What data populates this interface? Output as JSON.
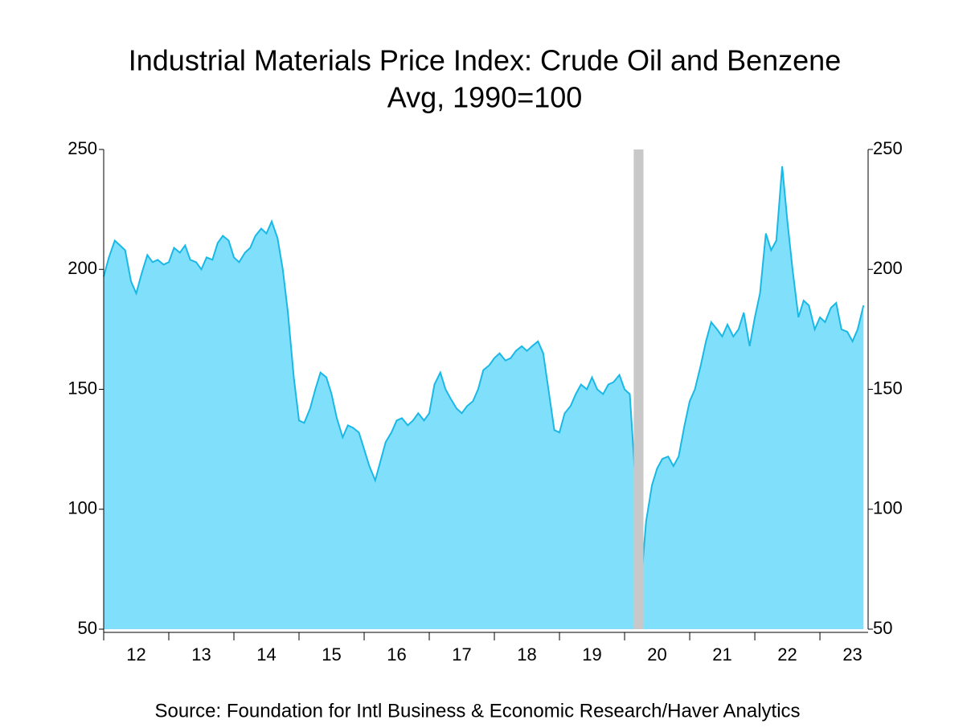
{
  "chart_data": {
    "type": "area",
    "title": "Industrial Materials Price Index: Crude Oil and Benzene",
    "subtitle": "Avg, 1990=100",
    "source": "Source:  Foundation for Intl Business & Economic Research/Haver Analytics",
    "x": [
      12,
      12.08,
      12.17,
      12.25,
      12.33,
      12.42,
      12.5,
      12.58,
      12.67,
      12.75,
      12.83,
      12.92,
      13,
      13.08,
      13.17,
      13.25,
      13.33,
      13.42,
      13.5,
      13.58,
      13.67,
      13.75,
      13.83,
      13.92,
      14,
      14.08,
      14.17,
      14.25,
      14.33,
      14.42,
      14.5,
      14.58,
      14.67,
      14.75,
      14.83,
      14.92,
      15,
      15.08,
      15.17,
      15.25,
      15.33,
      15.42,
      15.5,
      15.58,
      15.67,
      15.75,
      15.83,
      15.92,
      16,
      16.08,
      16.17,
      16.25,
      16.33,
      16.42,
      16.5,
      16.58,
      16.67,
      16.75,
      16.83,
      16.92,
      17,
      17.08,
      17.17,
      17.25,
      17.33,
      17.42,
      17.5,
      17.58,
      17.67,
      17.75,
      17.83,
      17.92,
      18,
      18.08,
      18.17,
      18.25,
      18.33,
      18.42,
      18.5,
      18.58,
      18.67,
      18.75,
      18.83,
      18.92,
      19,
      19.08,
      19.17,
      19.25,
      19.33,
      19.42,
      19.5,
      19.58,
      19.67,
      19.75,
      19.83,
      19.92,
      20,
      20.08,
      20.17,
      20.25,
      20.33,
      20.42,
      20.5,
      20.58,
      20.67,
      20.75,
      20.83,
      20.92,
      21,
      21.08,
      21.17,
      21.25,
      21.33,
      21.42,
      21.5,
      21.58,
      21.67,
      21.75,
      21.83,
      21.92,
      22,
      22.08,
      22.17,
      22.25,
      22.33,
      22.42,
      22.5,
      22.58,
      22.67,
      22.75,
      22.83,
      22.92,
      23,
      23.08,
      23.17,
      23.25,
      23.33,
      23.42,
      23.5,
      23.58,
      23.67
    ],
    "series": [
      {
        "name": "Crude Oil and Benzene",
        "color": "#1ab8e6",
        "fill": "#80e0fc",
        "values": [
          197,
          205,
          212,
          210,
          208,
          195,
          190,
          198,
          206,
          203,
          204,
          202,
          203,
          209,
          207,
          210,
          204,
          203,
          200,
          205,
          204,
          211,
          214,
          212,
          205,
          203,
          207,
          209,
          214,
          217,
          215,
          220,
          213,
          200,
          182,
          155,
          137,
          136,
          142,
          150,
          157,
          155,
          148,
          138,
          130,
          135,
          134,
          132,
          125,
          118,
          112,
          120,
          128,
          132,
          137,
          138,
          135,
          137,
          140,
          137,
          140,
          152,
          157,
          150,
          146,
          142,
          140,
          143,
          145,
          150,
          158,
          160,
          163,
          165,
          162,
          163,
          166,
          168,
          166,
          168,
          170,
          165,
          150,
          133,
          132,
          140,
          143,
          148,
          152,
          150,
          155,
          150,
          148,
          152,
          153,
          156,
          150,
          148,
          110,
          68,
          95,
          110,
          117,
          121,
          122,
          118,
          122,
          135,
          145,
          150,
          160,
          170,
          178,
          175,
          172,
          177,
          172,
          175,
          182,
          168,
          180,
          190,
          215,
          208,
          212,
          243,
          220,
          200,
          180,
          187,
          185,
          175,
          180,
          178,
          184,
          186,
          175,
          174,
          170,
          175,
          185
        ]
      }
    ],
    "xlim": [
      12,
      23.74
    ],
    "xticks": [
      12,
      13,
      14,
      15,
      16,
      17,
      18,
      19,
      20,
      21,
      22,
      23
    ],
    "ylim": [
      50,
      250
    ],
    "yticks": [
      50,
      100,
      150,
      200,
      250
    ],
    "y2lim": [
      50,
      250
    ],
    "y2ticks": [
      50,
      100,
      150,
      200,
      250
    ],
    "shaded_periods": [
      [
        20.14,
        20.29
      ]
    ],
    "shade_color": "#c8c8c8"
  }
}
